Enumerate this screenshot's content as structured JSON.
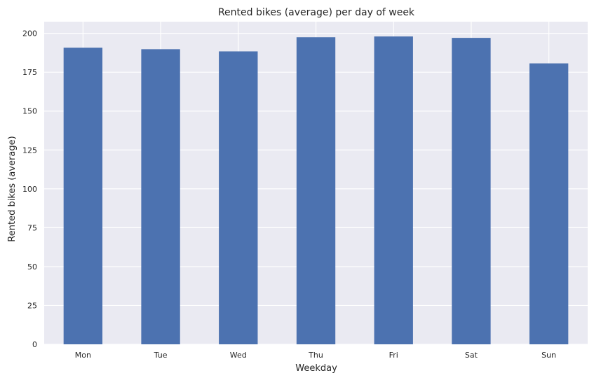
{
  "chart_data": {
    "type": "bar",
    "title": "Rented bikes (average) per day of week",
    "xlabel": "Weekday",
    "ylabel": "Rented bikes (average)",
    "categories": [
      "Mon",
      "Tue",
      "Wed",
      "Thu",
      "Fri",
      "Sat",
      "Sun"
    ],
    "values": [
      190.8,
      189.8,
      188.4,
      197.5,
      198.0,
      197.1,
      180.7
    ],
    "ylim": [
      0,
      207.5
    ],
    "yticks": [
      0,
      25,
      50,
      75,
      100,
      125,
      150,
      175,
      200
    ],
    "grid": true,
    "legend": "none",
    "colors": {
      "bar": "#4c72b0",
      "plot_background": "#eaeaf2",
      "grid": "#ffffff",
      "text": "#262626"
    }
  }
}
